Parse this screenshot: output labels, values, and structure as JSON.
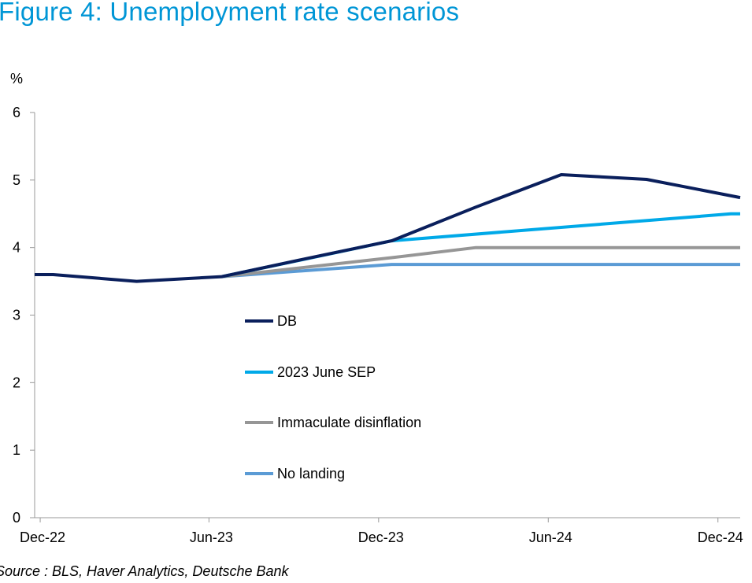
{
  "title": "Figure 4: Unemployment rate scenarios",
  "source": "Source : BLS, Haver Analytics, Deutsche Bank",
  "colors": {
    "title": "#0096D6",
    "axis": "#999999"
  },
  "chart_data": {
    "type": "line",
    "title": "Figure 4: Unemployment rate scenarios",
    "ylabel": "%",
    "xlabel": "",
    "ylim": [
      0,
      6
    ],
    "yticks": [
      0,
      1,
      2,
      3,
      4,
      5,
      6
    ],
    "xlim": [
      "2022-11-25",
      "2024-12-25"
    ],
    "xtick_labels": [
      {
        "date": "2022-12-01",
        "label": "Dec-22"
      },
      {
        "date": "2023-06-01",
        "label": "Jun-23"
      },
      {
        "date": "2023-12-01",
        "label": "Dec-23"
      },
      {
        "date": "2024-06-01",
        "label": "Jun-24"
      },
      {
        "date": "2024-12-01",
        "label": "Dec-24"
      }
    ],
    "grid": false,
    "legend": "center-left",
    "series": [
      {
        "name": "DB",
        "color": "#0A1F5C",
        "points": [
          [
            "2022-11-25",
            3.6
          ],
          [
            "2022-12-15",
            3.6
          ],
          [
            "2023-03-15",
            3.5
          ],
          [
            "2023-06-15",
            3.57
          ],
          [
            "2023-09-15",
            3.84
          ],
          [
            "2023-12-15",
            4.1
          ],
          [
            "2024-03-15",
            4.6
          ],
          [
            "2024-06-15",
            5.08
          ],
          [
            "2024-09-15",
            5.01
          ],
          [
            "2024-12-25",
            4.74
          ]
        ]
      },
      {
        "name": "2023 June SEP",
        "color": "#00A9E8",
        "points": [
          [
            "2023-06-15",
            3.57
          ],
          [
            "2023-12-15",
            4.1
          ],
          [
            "2024-12-15",
            4.5
          ],
          [
            "2024-12-25",
            4.5
          ]
        ]
      },
      {
        "name": "Immaculate disinflation",
        "color": "#969696",
        "points": [
          [
            "2023-06-15",
            3.57
          ],
          [
            "2023-12-15",
            3.85
          ],
          [
            "2024-03-15",
            4.0
          ],
          [
            "2024-12-25",
            4.0
          ]
        ]
      },
      {
        "name": "No landing",
        "color": "#5B9BD5",
        "points": [
          [
            "2023-06-15",
            3.57
          ],
          [
            "2023-12-15",
            3.75
          ],
          [
            "2024-12-25",
            3.75
          ]
        ]
      }
    ]
  }
}
